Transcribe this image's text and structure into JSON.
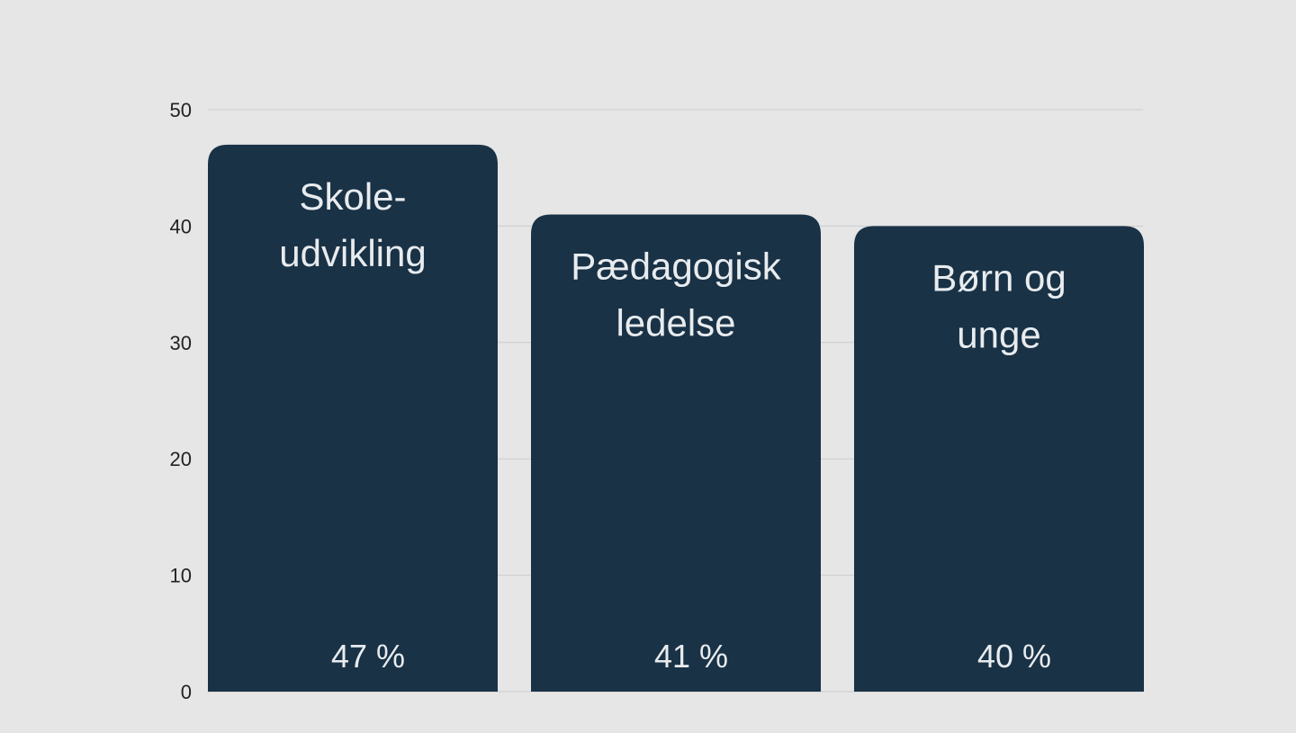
{
  "colors": {
    "background": "#e6e6e6",
    "bar": "#1a3246",
    "gridline": "#cccccc",
    "bar_text": "#e8ecef",
    "axis_text": "#222222"
  },
  "chart_data": {
    "type": "bar",
    "categories": [
      "Skole-udvikling",
      "Pædagogisk ledelse",
      "Børn og unge"
    ],
    "category_lines": [
      [
        "Skole-",
        "udvikling"
      ],
      [
        "Pædagogisk",
        "ledelse"
      ],
      [
        "Børn og",
        "unge"
      ]
    ],
    "values": [
      47,
      41,
      40
    ],
    "value_labels": [
      "47 %",
      "41 %",
      "40 %"
    ],
    "ylim": [
      0,
      50
    ],
    "yticks": [
      0,
      10,
      20,
      30,
      40,
      50
    ],
    "grid": true,
    "title": "",
    "xlabel": "",
    "ylabel": ""
  }
}
